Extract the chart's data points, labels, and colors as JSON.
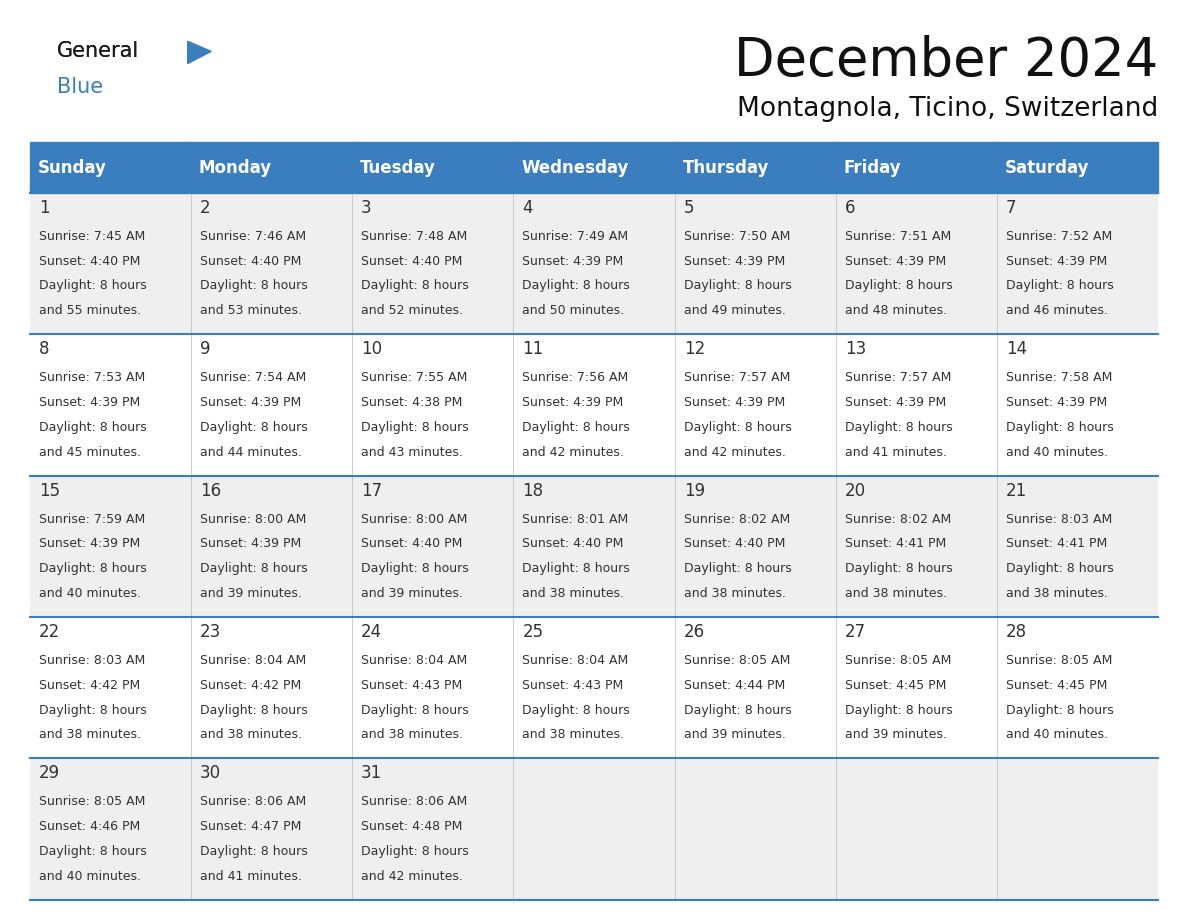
{
  "title": "December 2024",
  "subtitle": "Montagnola, Ticino, Switzerland",
  "header_color": "#3a7ebf",
  "header_text_color": "#ffffff",
  "cell_bg_odd": "#efefef",
  "cell_bg_even": "#ffffff",
  "text_color": "#333333",
  "border_color": "#3a7ebf",
  "day_headers": [
    "Sunday",
    "Monday",
    "Tuesday",
    "Wednesday",
    "Thursday",
    "Friday",
    "Saturday"
  ],
  "days": [
    {
      "day": 1,
      "col": 0,
      "row": 0,
      "sunrise": "7:45 AM",
      "sunset": "4:40 PM",
      "dl_hours": 8,
      "dl_minutes": 55
    },
    {
      "day": 2,
      "col": 1,
      "row": 0,
      "sunrise": "7:46 AM",
      "sunset": "4:40 PM",
      "dl_hours": 8,
      "dl_minutes": 53
    },
    {
      "day": 3,
      "col": 2,
      "row": 0,
      "sunrise": "7:48 AM",
      "sunset": "4:40 PM",
      "dl_hours": 8,
      "dl_minutes": 52
    },
    {
      "day": 4,
      "col": 3,
      "row": 0,
      "sunrise": "7:49 AM",
      "sunset": "4:39 PM",
      "dl_hours": 8,
      "dl_minutes": 50
    },
    {
      "day": 5,
      "col": 4,
      "row": 0,
      "sunrise": "7:50 AM",
      "sunset": "4:39 PM",
      "dl_hours": 8,
      "dl_minutes": 49
    },
    {
      "day": 6,
      "col": 5,
      "row": 0,
      "sunrise": "7:51 AM",
      "sunset": "4:39 PM",
      "dl_hours": 8,
      "dl_minutes": 48
    },
    {
      "day": 7,
      "col": 6,
      "row": 0,
      "sunrise": "7:52 AM",
      "sunset": "4:39 PM",
      "dl_hours": 8,
      "dl_minutes": 46
    },
    {
      "day": 8,
      "col": 0,
      "row": 1,
      "sunrise": "7:53 AM",
      "sunset": "4:39 PM",
      "dl_hours": 8,
      "dl_minutes": 45
    },
    {
      "day": 9,
      "col": 1,
      "row": 1,
      "sunrise": "7:54 AM",
      "sunset": "4:39 PM",
      "dl_hours": 8,
      "dl_minutes": 44
    },
    {
      "day": 10,
      "col": 2,
      "row": 1,
      "sunrise": "7:55 AM",
      "sunset": "4:38 PM",
      "dl_hours": 8,
      "dl_minutes": 43
    },
    {
      "day": 11,
      "col": 3,
      "row": 1,
      "sunrise": "7:56 AM",
      "sunset": "4:39 PM",
      "dl_hours": 8,
      "dl_minutes": 42
    },
    {
      "day": 12,
      "col": 4,
      "row": 1,
      "sunrise": "7:57 AM",
      "sunset": "4:39 PM",
      "dl_hours": 8,
      "dl_minutes": 42
    },
    {
      "day": 13,
      "col": 5,
      "row": 1,
      "sunrise": "7:57 AM",
      "sunset": "4:39 PM",
      "dl_hours": 8,
      "dl_minutes": 41
    },
    {
      "day": 14,
      "col": 6,
      "row": 1,
      "sunrise": "7:58 AM",
      "sunset": "4:39 PM",
      "dl_hours": 8,
      "dl_minutes": 40
    },
    {
      "day": 15,
      "col": 0,
      "row": 2,
      "sunrise": "7:59 AM",
      "sunset": "4:39 PM",
      "dl_hours": 8,
      "dl_minutes": 40
    },
    {
      "day": 16,
      "col": 1,
      "row": 2,
      "sunrise": "8:00 AM",
      "sunset": "4:39 PM",
      "dl_hours": 8,
      "dl_minutes": 39
    },
    {
      "day": 17,
      "col": 2,
      "row": 2,
      "sunrise": "8:00 AM",
      "sunset": "4:40 PM",
      "dl_hours": 8,
      "dl_minutes": 39
    },
    {
      "day": 18,
      "col": 3,
      "row": 2,
      "sunrise": "8:01 AM",
      "sunset": "4:40 PM",
      "dl_hours": 8,
      "dl_minutes": 38
    },
    {
      "day": 19,
      "col": 4,
      "row": 2,
      "sunrise": "8:02 AM",
      "sunset": "4:40 PM",
      "dl_hours": 8,
      "dl_minutes": 38
    },
    {
      "day": 20,
      "col": 5,
      "row": 2,
      "sunrise": "8:02 AM",
      "sunset": "4:41 PM",
      "dl_hours": 8,
      "dl_minutes": 38
    },
    {
      "day": 21,
      "col": 6,
      "row": 2,
      "sunrise": "8:03 AM",
      "sunset": "4:41 PM",
      "dl_hours": 8,
      "dl_minutes": 38
    },
    {
      "day": 22,
      "col": 0,
      "row": 3,
      "sunrise": "8:03 AM",
      "sunset": "4:42 PM",
      "dl_hours": 8,
      "dl_minutes": 38
    },
    {
      "day": 23,
      "col": 1,
      "row": 3,
      "sunrise": "8:04 AM",
      "sunset": "4:42 PM",
      "dl_hours": 8,
      "dl_minutes": 38
    },
    {
      "day": 24,
      "col": 2,
      "row": 3,
      "sunrise": "8:04 AM",
      "sunset": "4:43 PM",
      "dl_hours": 8,
      "dl_minutes": 38
    },
    {
      "day": 25,
      "col": 3,
      "row": 3,
      "sunrise": "8:04 AM",
      "sunset": "4:43 PM",
      "dl_hours": 8,
      "dl_minutes": 38
    },
    {
      "day": 26,
      "col": 4,
      "row": 3,
      "sunrise": "8:05 AM",
      "sunset": "4:44 PM",
      "dl_hours": 8,
      "dl_minutes": 39
    },
    {
      "day": 27,
      "col": 5,
      "row": 3,
      "sunrise": "8:05 AM",
      "sunset": "4:45 PM",
      "dl_hours": 8,
      "dl_minutes": 39
    },
    {
      "day": 28,
      "col": 6,
      "row": 3,
      "sunrise": "8:05 AM",
      "sunset": "4:45 PM",
      "dl_hours": 8,
      "dl_minutes": 40
    },
    {
      "day": 29,
      "col": 0,
      "row": 4,
      "sunrise": "8:05 AM",
      "sunset": "4:46 PM",
      "dl_hours": 8,
      "dl_minutes": 40
    },
    {
      "day": 30,
      "col": 1,
      "row": 4,
      "sunrise": "8:06 AM",
      "sunset": "4:47 PM",
      "dl_hours": 8,
      "dl_minutes": 41
    },
    {
      "day": 31,
      "col": 2,
      "row": 4,
      "sunrise": "8:06 AM",
      "sunset": "4:48 PM",
      "dl_hours": 8,
      "dl_minutes": 42
    }
  ],
  "logo_color_general": "#1a1a1a",
  "logo_color_blue": "#3a7ebf",
  "title_fontsize": 38,
  "subtitle_fontsize": 19,
  "header_fontsize": 12,
  "day_num_fontsize": 12,
  "cell_fontsize": 9
}
